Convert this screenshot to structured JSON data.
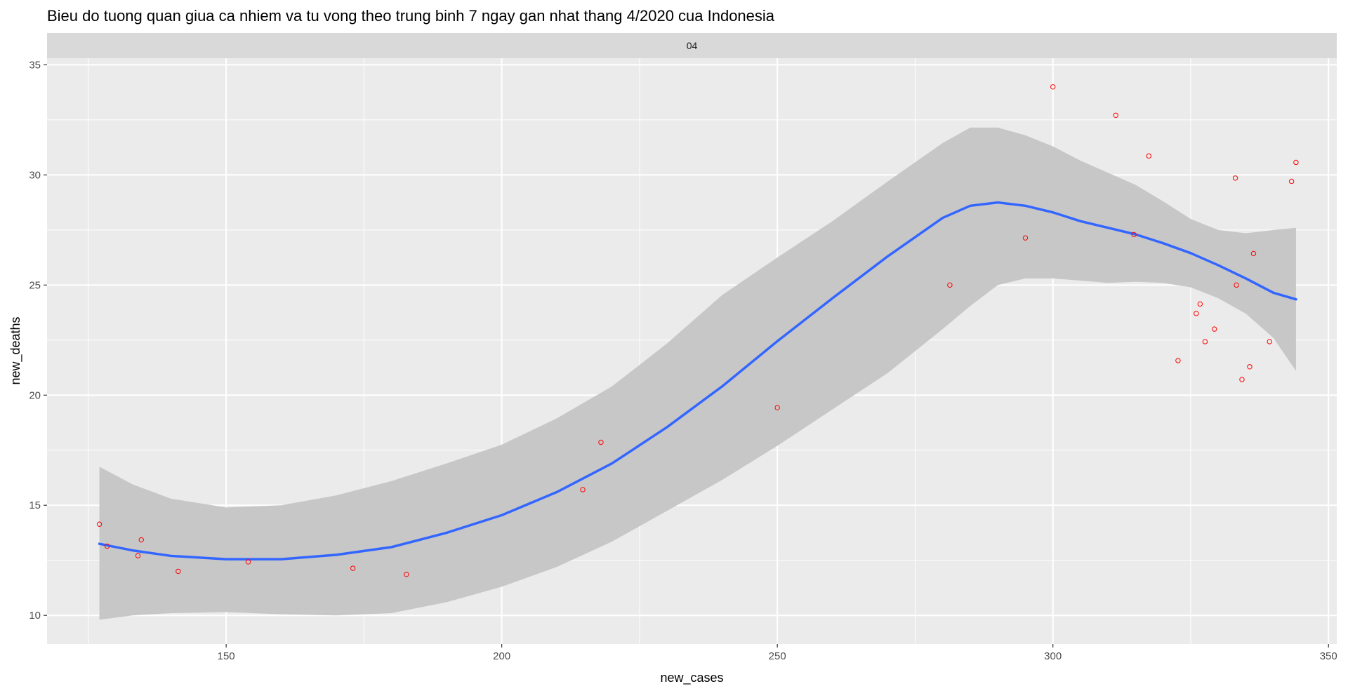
{
  "chart_data": {
    "type": "scatter",
    "title": "Bieu do tuong quan giua ca nhiem va tu vong theo trung binh 7 ngay gan nhat thang 4/2020 cua Indonesia",
    "facet_label": "04",
    "xlabel": "new_cases",
    "ylabel": "new_deaths",
    "xlim": [
      117.5,
      351.5
    ],
    "ylim": [
      8.7,
      35.3
    ],
    "x_ticks": [
      150,
      200,
      250,
      300,
      350
    ],
    "y_ticks": [
      10,
      15,
      20,
      25,
      30,
      35
    ],
    "x_minor": [
      125,
      175,
      225,
      275,
      325
    ],
    "y_minor": [
      12.5,
      17.5,
      22.5,
      27.5,
      32.5
    ],
    "grid": true,
    "colors": {
      "panel": "#ebebeb",
      "strip": "#d9d9d9",
      "grid": "#ffffff",
      "points": "#ff0000",
      "smooth_line": "#3366ff",
      "ribbon": "#c7c7c7"
    },
    "series": [
      {
        "type": "points",
        "x": [
          127.0,
          128.4,
          134.0,
          134.6,
          141.3,
          154.0,
          173.0,
          182.7,
          214.7,
          218.0,
          250.0,
          281.3,
          295.0,
          300.0,
          311.4,
          314.7,
          317.4,
          322.7,
          326.0,
          326.7,
          327.6,
          329.3,
          333.1,
          333.3,
          334.3,
          335.7,
          336.4,
          339.3,
          343.3,
          344.1
        ],
        "y": [
          14.14,
          13.14,
          12.71,
          13.43,
          12.0,
          12.43,
          12.14,
          11.86,
          15.71,
          17.86,
          19.43,
          25.0,
          27.14,
          34.0,
          32.71,
          27.29,
          30.86,
          21.57,
          23.71,
          24.14,
          22.43,
          23.0,
          29.86,
          25.0,
          20.71,
          21.29,
          26.43,
          22.43,
          29.71,
          30.57
        ]
      },
      {
        "type": "smooth",
        "x": [
          127.0,
          133.0,
          140.0,
          150.0,
          160.0,
          170.0,
          180.0,
          190.0,
          200.0,
          210.0,
          220.0,
          230.0,
          240.0,
          250.0,
          260.0,
          270.0,
          280.0,
          285.0,
          290.0,
          295.0,
          300.0,
          305.0,
          310.0,
          315.0,
          320.0,
          325.0,
          330.0,
          335.0,
          340.0,
          344.1
        ],
        "y": [
          13.25,
          12.95,
          12.7,
          12.55,
          12.55,
          12.75,
          13.1,
          13.75,
          14.55,
          15.6,
          16.9,
          18.55,
          20.4,
          22.45,
          24.4,
          26.3,
          28.05,
          28.6,
          28.75,
          28.6,
          28.3,
          27.9,
          27.6,
          27.3,
          26.9,
          26.45,
          25.9,
          25.3,
          24.65,
          24.35
        ],
        "lower": [
          9.8,
          10.0,
          10.1,
          10.15,
          10.05,
          10.0,
          10.1,
          10.6,
          11.3,
          12.2,
          13.35,
          14.75,
          16.15,
          17.7,
          19.35,
          21.0,
          23.0,
          24.05,
          25.0,
          25.3,
          25.3,
          25.2,
          25.1,
          25.15,
          25.1,
          24.9,
          24.4,
          23.7,
          22.6,
          21.1
        ],
        "upper": [
          16.75,
          15.95,
          15.3,
          14.9,
          15.0,
          15.45,
          16.1,
          16.9,
          17.75,
          18.95,
          20.4,
          22.35,
          24.55,
          26.25,
          27.9,
          29.7,
          31.45,
          32.15,
          32.15,
          31.8,
          31.3,
          30.65,
          30.1,
          29.55,
          28.8,
          28.0,
          27.5,
          27.35,
          27.5,
          27.6
        ]
      }
    ]
  }
}
